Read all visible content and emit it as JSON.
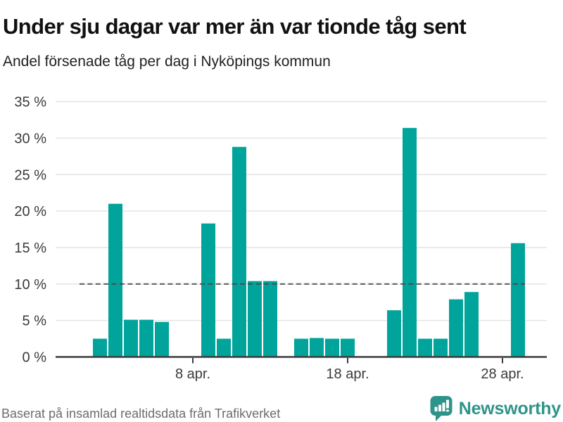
{
  "header": {
    "title": "Under sju dagar var mer än var tionde tåg sent",
    "subtitle": "Andel försenade tåg per dag i Nyköpings kommun"
  },
  "footer": {
    "source": "Baserat på insamlad realtidsdata från Trafikverket",
    "brand": "Newsworthy",
    "logo_icon": "speech-bubble-with-bar-chart-and-exclamation"
  },
  "colors": {
    "bar": "#01a49b",
    "axis": "#3b3b3b",
    "gridline": "#e4e4e4",
    "reference_line": "#4a4a4a",
    "tick_label": "#3a3a3a",
    "brand_teal": "#2e9489",
    "source_gray": "#6d6d6d"
  },
  "chart_data": {
    "type": "bar",
    "title": "Under sju dagar var mer än var tionde tåg sent",
    "subtitle": "Andel försenade tåg per dag i Nyköpings kommun",
    "unit": "%",
    "x_unit": "day of April",
    "grid": true,
    "ylim": [
      0,
      35
    ],
    "reference_line": 10,
    "points": [
      {
        "day": 2,
        "value": 2.5
      },
      {
        "day": 3,
        "value": 21.0
      },
      {
        "day": 4,
        "value": 5.1
      },
      {
        "day": 5,
        "value": 5.1
      },
      {
        "day": 6,
        "value": 4.8
      },
      {
        "day": 9,
        "value": 18.3
      },
      {
        "day": 10,
        "value": 2.5
      },
      {
        "day": 11,
        "value": 28.8
      },
      {
        "day": 12,
        "value": 10.4
      },
      {
        "day": 13,
        "value": 10.4
      },
      {
        "day": 15,
        "value": 2.5
      },
      {
        "day": 16,
        "value": 2.6
      },
      {
        "day": 17,
        "value": 2.5
      },
      {
        "day": 18,
        "value": 2.5
      },
      {
        "day": 21,
        "value": 6.4
      },
      {
        "day": 22,
        "value": 31.4
      },
      {
        "day": 23,
        "value": 2.5
      },
      {
        "day": 24,
        "value": 2.5
      },
      {
        "day": 25,
        "value": 7.9
      },
      {
        "day": 26,
        "value": 8.9
      },
      {
        "day": 29,
        "value": 15.6
      }
    ],
    "yticks": [
      {
        "value": 0,
        "label": "0 %"
      },
      {
        "value": 5,
        "label": "5 %"
      },
      {
        "value": 10,
        "label": "10 %"
      },
      {
        "value": 15,
        "label": "15 %"
      },
      {
        "value": 20,
        "label": "20 %"
      },
      {
        "value": 25,
        "label": "25 %"
      },
      {
        "value": 30,
        "label": "30 %"
      },
      {
        "value": 35,
        "label": "35 %"
      }
    ],
    "xticks": [
      {
        "day": 8,
        "label": "8 apr."
      },
      {
        "day": 18,
        "label": "18 apr."
      },
      {
        "day": 28,
        "label": "28 apr."
      }
    ]
  }
}
